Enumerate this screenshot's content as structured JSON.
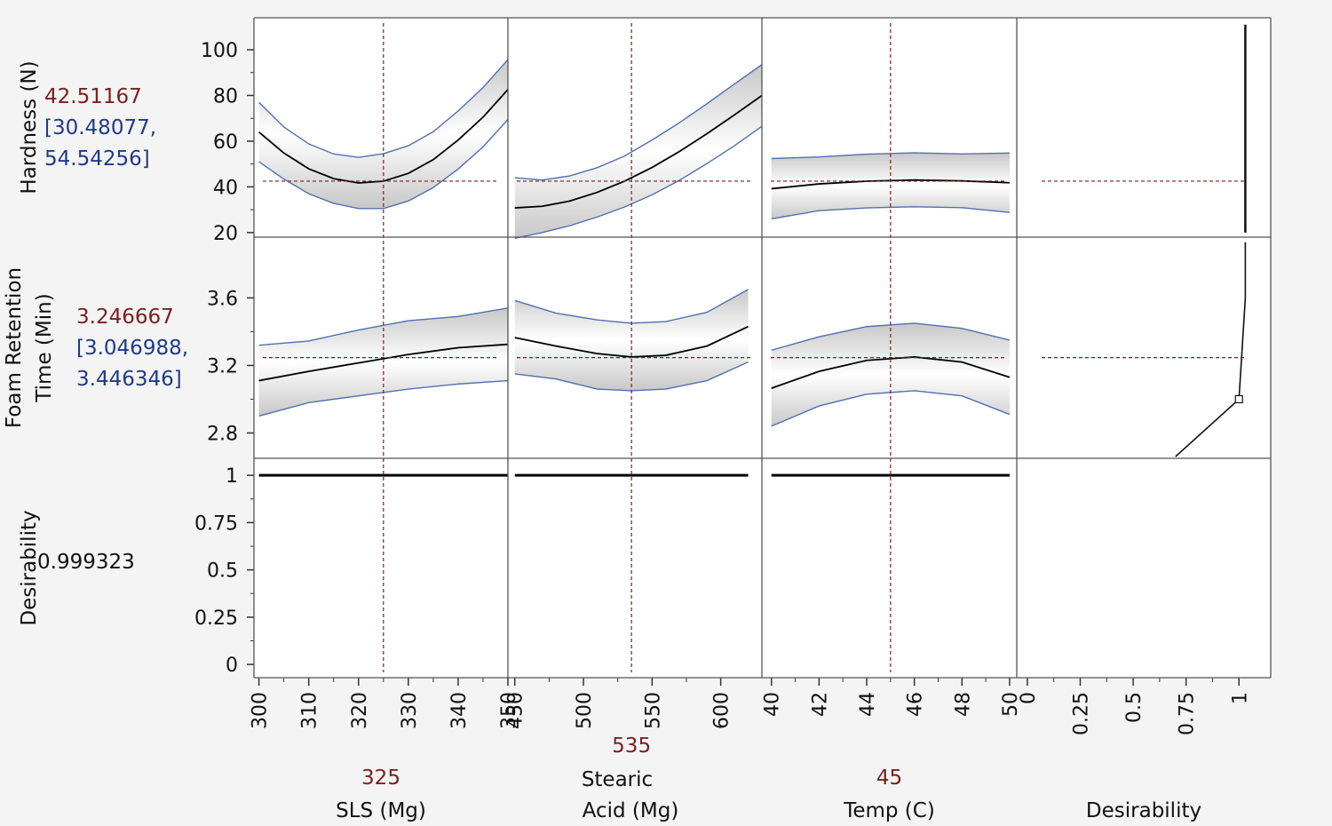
{
  "colors": {
    "current": "#7a1f1f",
    "interval": "#1f3a8a",
    "band_fill": "#c8c8c8",
    "band_edge": "#5070b0",
    "curve": "#000000",
    "crosshair": "#7a1f1f",
    "grid": "#555555",
    "background": "#ffffff"
  },
  "chart_data": {
    "type": "line",
    "title": "",
    "factors": [
      {
        "name": "SLS (Mg)",
        "name_lines": [
          "",
          "SLS (Mg)"
        ],
        "current": "325",
        "current_value": 325,
        "range": [
          299,
          350
        ],
        "ticks": [
          300,
          310,
          320,
          330,
          340,
          350
        ]
      },
      {
        "name": "Stearic Acid (Mg)",
        "name_lines": [
          "Stearic",
          "Acid (Mg)"
        ],
        "current": "535",
        "current_value": 535,
        "range": [
          445,
          630
        ],
        "ticks": [
          450,
          500,
          550,
          600
        ]
      },
      {
        "name": "Temp (C)",
        "name_lines": [
          "",
          "Temp (C)"
        ],
        "current": "45",
        "current_value": 45,
        "range": [
          39.6,
          50.3
        ],
        "ticks": [
          40,
          42,
          44,
          46,
          48,
          50
        ]
      },
      {
        "name": "Desirability",
        "name_lines": [
          "",
          "Desirability"
        ],
        "current": "",
        "range": [
          -0.05,
          1.15
        ],
        "ticks": [
          0,
          0.25,
          0.5,
          0.75,
          1
        ],
        "tick_labels": [
          "0",
          "0.25",
          "0.5",
          "0.75",
          "1"
        ]
      }
    ],
    "responses": [
      {
        "name": "Hardness (N)",
        "name_lines": [
          "",
          "Hardness (N)"
        ],
        "current": "42.51167",
        "interval_lines": [
          "[30.48077,",
          "54.54256]"
        ],
        "current_value": 42.51167,
        "ylim": [
          18,
          114
        ],
        "ticks": [
          20,
          40,
          60,
          80,
          100
        ],
        "tick_labels": [
          "20",
          "40",
          "60",
          "80",
          "100"
        ],
        "curves": [
          {
            "x": [
              300,
              305,
              310,
              315,
              320,
              325,
              330,
              335,
              340,
              345,
              350
            ],
            "y": [
              64.0,
              54.8,
              47.9,
              43.6,
              41.7,
              42.5,
              45.9,
              51.9,
              60.5,
              70.5,
              82.6
            ],
            "lo": [
              51.0,
              43.4,
              37.0,
              32.8,
              30.5,
              30.5,
              33.8,
              39.7,
              47.8,
              57.5,
              69.5
            ],
            "hi": [
              77.0,
              66.2,
              58.8,
              54.4,
              52.9,
              54.5,
              58.0,
              64.1,
              73.2,
              83.5,
              95.7
            ]
          },
          {
            "x": [
              450,
              470,
              490,
              510,
              530,
              550,
              570,
              590,
              610,
              630
            ],
            "y": [
              30.8,
              31.5,
              33.8,
              37.6,
              42.5,
              48.5,
              55.5,
              63.3,
              71.5,
              80.0
            ],
            "lo": [
              17.5,
              20.0,
              23.0,
              26.8,
              31.2,
              36.5,
              42.9,
              50.2,
              58.0,
              66.5
            ],
            "hi": [
              44.0,
              43.0,
              44.8,
              48.4,
              53.5,
              60.5,
              68.1,
              76.4,
              85.0,
              93.5
            ]
          },
          {
            "x": [
              40,
              42,
              44,
              46,
              48,
              50
            ],
            "y": [
              39.2,
              41.3,
              42.5,
              43.0,
              42.6,
              41.8
            ],
            "lo": [
              26.0,
              29.6,
              30.8,
              31.3,
              30.9,
              28.8
            ],
            "hi": [
              52.4,
              53.1,
              54.3,
              54.9,
              54.4,
              54.8
            ]
          }
        ],
        "desirability_trace": {
          "x": [
            1.03,
            1.03
          ],
          "y": [
            20,
            111
          ]
        }
      },
      {
        "name": "Foam Retention Time (Min)",
        "name_lines": [
          "Foam Retention",
          "Time (Min)"
        ],
        "current": "3.246667",
        "interval_lines": [
          "[3.046988,",
          "3.446346]"
        ],
        "current_value": 3.246667,
        "ylim": [
          2.65,
          3.96
        ],
        "ticks": [
          2.8,
          3.2,
          3.6
        ],
        "tick_labels": [
          "2.8",
          "3.2",
          "3.6"
        ],
        "curves": [
          {
            "x": [
              300,
              310,
              320,
              330,
              340,
              350
            ],
            "y": [
              3.11,
              3.165,
              3.215,
              3.265,
              3.305,
              3.325
            ],
            "lo": [
              2.9,
              2.98,
              3.02,
              3.06,
              3.09,
              3.11
            ],
            "hi": [
              3.32,
              3.345,
              3.41,
              3.465,
              3.49,
              3.54
            ]
          },
          {
            "x": [
              450,
              480,
              510,
              535,
              560,
              590,
              620
            ],
            "y": [
              3.365,
              3.315,
              3.27,
              3.25,
              3.26,
              3.315,
              3.43
            ],
            "lo": [
              3.15,
              3.12,
              3.06,
              3.05,
              3.06,
              3.11,
              3.22
            ],
            "hi": [
              3.585,
              3.51,
              3.47,
              3.45,
              3.46,
              3.515,
              3.65
            ]
          },
          {
            "x": [
              40,
              42,
              44,
              46,
              48,
              50
            ],
            "y": [
              3.065,
              3.165,
              3.23,
              3.25,
              3.22,
              3.13
            ],
            "lo": [
              2.84,
              2.96,
              3.03,
              3.05,
              3.02,
              2.91
            ],
            "hi": [
              3.29,
              3.37,
              3.43,
              3.45,
              3.42,
              3.35
            ]
          }
        ],
        "desirability_trace": {
          "x": [
            0.7,
            1.0,
            1.01,
            1.03,
            1.03
          ],
          "y": [
            2.66,
            3.0,
            3.2,
            3.6,
            3.93
          ]
        },
        "desirability_marker": {
          "x": 1.0,
          "y": 3.0
        }
      },
      {
        "name": "Desirability",
        "name_lines": [
          "",
          "Desirability"
        ],
        "current": "0.999323",
        "interval_lines": [],
        "current_value": 0.999323,
        "ylim": [
          -0.07,
          1.09
        ],
        "ticks": [
          0,
          0.25,
          0.5,
          0.75,
          1
        ],
        "tick_labels": [
          "0",
          "0.25",
          "0.5",
          "0.75",
          "1"
        ],
        "curves": [
          {
            "x": [
              300,
              350
            ],
            "y": [
              1,
              1
            ]
          },
          {
            "x": [
              450,
              620
            ],
            "y": [
              1,
              1
            ]
          },
          {
            "x": [
              40,
              50
            ],
            "y": [
              1,
              1
            ]
          }
        ]
      }
    ]
  }
}
